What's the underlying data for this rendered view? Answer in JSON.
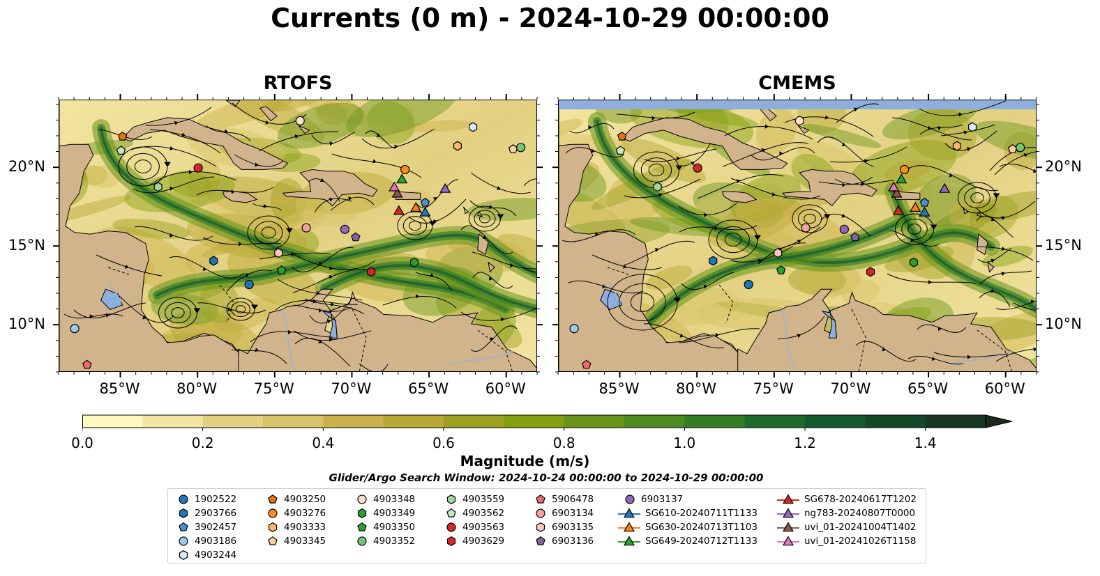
{
  "title": "Currents (0 m) - 2024-10-29 00:00:00",
  "panels": [
    {
      "title": "RTOFS"
    },
    {
      "title": "CMEMS"
    }
  ],
  "lon_labels": [
    "85°W",
    "80°W",
    "75°W",
    "70°W",
    "65°W",
    "60°W"
  ],
  "lat_labels": [
    "20°N",
    "15°N",
    "10°N"
  ],
  "colorbar": {
    "label": "Magnitude (m/s)",
    "ticks": [
      "0.0",
      "0.2",
      "0.4",
      "0.6",
      "0.8",
      "1.0",
      "1.2",
      "1.4"
    ],
    "range": [
      0.0,
      1.5
    ],
    "extend": "max",
    "colors": [
      "#fdf8c2",
      "#f2e5a1",
      "#e3d182",
      "#d8c367",
      "#cbb24a",
      "#b7a734",
      "#9ba020",
      "#839f10",
      "#68941a",
      "#4e8a1f",
      "#357d25",
      "#1e6b2c",
      "#155a2e",
      "#154829",
      "#173725",
      "#1a271b"
    ]
  },
  "land_color": "#d2b48c",
  "water_color": "#8eaede",
  "search_window": "Glider/Argo Search Window: 2024-10-24 00:00:00 to 2024-10-29 00:00:00",
  "legend": [
    {
      "label": "1902522",
      "marker": "circle",
      "color": "#1f77b4"
    },
    {
      "label": "2903766",
      "marker": "hexagon",
      "color": "#1f77b4"
    },
    {
      "label": "3902457",
      "marker": "pentagon",
      "color": "#4a90d9"
    },
    {
      "label": "4903186",
      "marker": "circle",
      "color": "#9ecae9"
    },
    {
      "label": "4903244",
      "marker": "hexagon",
      "color": "#d6eaf8"
    },
    {
      "label": "4903250",
      "marker": "pentagon",
      "color": "#e6730f"
    },
    {
      "label": "4903276",
      "marker": "circle",
      "color": "#ff8c1a"
    },
    {
      "label": "4903333",
      "marker": "hexagon",
      "color": "#fdb56b"
    },
    {
      "label": "4903345",
      "marker": "pentagon",
      "color": "#fdd0a2"
    },
    {
      "label": "4903348",
      "marker": "circle",
      "color": "#fde0c5"
    },
    {
      "label": "4903349",
      "marker": "hexagon",
      "color": "#2ca02c"
    },
    {
      "label": "4903350",
      "marker": "pentagon",
      "color": "#2ca02c"
    },
    {
      "label": "4903352",
      "marker": "circle",
      "color": "#74c476"
    },
    {
      "label": "4903559",
      "marker": "hexagon",
      "color": "#a1d99b"
    },
    {
      "label": "4903562",
      "marker": "pentagon",
      "color": "#c7e9c0"
    },
    {
      "label": "4903563",
      "marker": "circle",
      "color": "#d62728"
    },
    {
      "label": "4903629",
      "marker": "hexagon",
      "color": "#d62728"
    },
    {
      "label": "5906478",
      "marker": "pentagon",
      "color": "#f06a6a"
    },
    {
      "label": "6903134",
      "marker": "circle",
      "color": "#f4a09c"
    },
    {
      "label": "6903135",
      "marker": "hexagon",
      "color": "#fcc5c0"
    },
    {
      "label": "6903136",
      "marker": "pentagon",
      "color": "#8064a2"
    },
    {
      "label": "6903137",
      "marker": "circle",
      "color": "#9467bd"
    },
    {
      "label": "SG610-20240711T1133",
      "marker": "triangle",
      "color": "#1f77b4"
    },
    {
      "label": "SG630-20240713T1103",
      "marker": "triangle",
      "color": "#ff7f0e"
    },
    {
      "label": "SG649-20240712T1133",
      "marker": "triangle",
      "color": "#2ca02c"
    },
    {
      "label": "SG678-20240617T1202",
      "marker": "triangle",
      "color": "#d62728"
    },
    {
      "label": "ng783-20240807T0000",
      "marker": "triangle",
      "color": "#9467bd"
    },
    {
      "label": "uvi_01-20241004T1402",
      "marker": "triangle",
      "color": "#8c564b"
    },
    {
      "label": "uvi_01-20241026T1158",
      "marker": "triangle",
      "color": "#e377c2"
    }
  ],
  "observations": [
    {
      "id": "1902522",
      "lon": -76.7,
      "lat": 12.6
    },
    {
      "id": "2903766",
      "lon": -79.0,
      "lat": 14.1
    },
    {
      "id": "3902457",
      "lon": -65.3,
      "lat": 17.8
    },
    {
      "id": "4903186",
      "lon": -88.0,
      "lat": 9.8
    },
    {
      "id": "4903244",
      "lon": -62.2,
      "lat": 22.6
    },
    {
      "id": "4903250",
      "lon": -84.9,
      "lat": 22.0
    },
    {
      "id": "4903276",
      "lon": -66.6,
      "lat": 19.9
    },
    {
      "id": "4903333",
      "lon": -63.2,
      "lat": 21.4
    },
    {
      "id": "4903345",
      "lon": -59.6,
      "lat": 21.2
    },
    {
      "id": "4903348",
      "lon": -73.4,
      "lat": 23.0
    },
    {
      "id": "4903349",
      "lon": -66.0,
      "lat": 14.0
    },
    {
      "id": "4903350",
      "lon": -74.6,
      "lat": 13.5
    },
    {
      "id": "4903352",
      "lon": -59.1,
      "lat": 21.3
    },
    {
      "id": "4903559",
      "lon": -82.6,
      "lat": 18.8
    },
    {
      "id": "4903562",
      "lon": -85.0,
      "lat": 21.1
    },
    {
      "id": "4903563",
      "lon": -80.0,
      "lat": 20.0
    },
    {
      "id": "4903629",
      "lon": -68.8,
      "lat": 13.4
    },
    {
      "id": "5906478",
      "lon": -87.2,
      "lat": 7.5
    },
    {
      "id": "6903134",
      "lon": -73.0,
      "lat": 16.2
    },
    {
      "id": "6903135",
      "lon": -74.8,
      "lat": 14.6
    },
    {
      "id": "6903136",
      "lon": -69.8,
      "lat": 15.6
    },
    {
      "id": "6903137",
      "lon": -70.5,
      "lat": 16.1
    },
    {
      "id": "SG610-20240711T1133",
      "lon": -65.3,
      "lat": 17.2
    },
    {
      "id": "SG630-20240713T1103",
      "lon": -65.9,
      "lat": 17.5
    },
    {
      "id": "SG649-20240712T1133",
      "lon": -66.8,
      "lat": 19.3
    },
    {
      "id": "SG678-20240617T1202",
      "lon": -67.0,
      "lat": 17.3
    },
    {
      "id": "ng783-20240807T0000",
      "lon": -64.0,
      "lat": 18.7
    },
    {
      "id": "uvi_01-20241004T1402",
      "lon": -67.1,
      "lat": 18.4
    },
    {
      "id": "uvi_01-20241026T1158",
      "lon": -67.3,
      "lat": 18.8
    }
  ]
}
